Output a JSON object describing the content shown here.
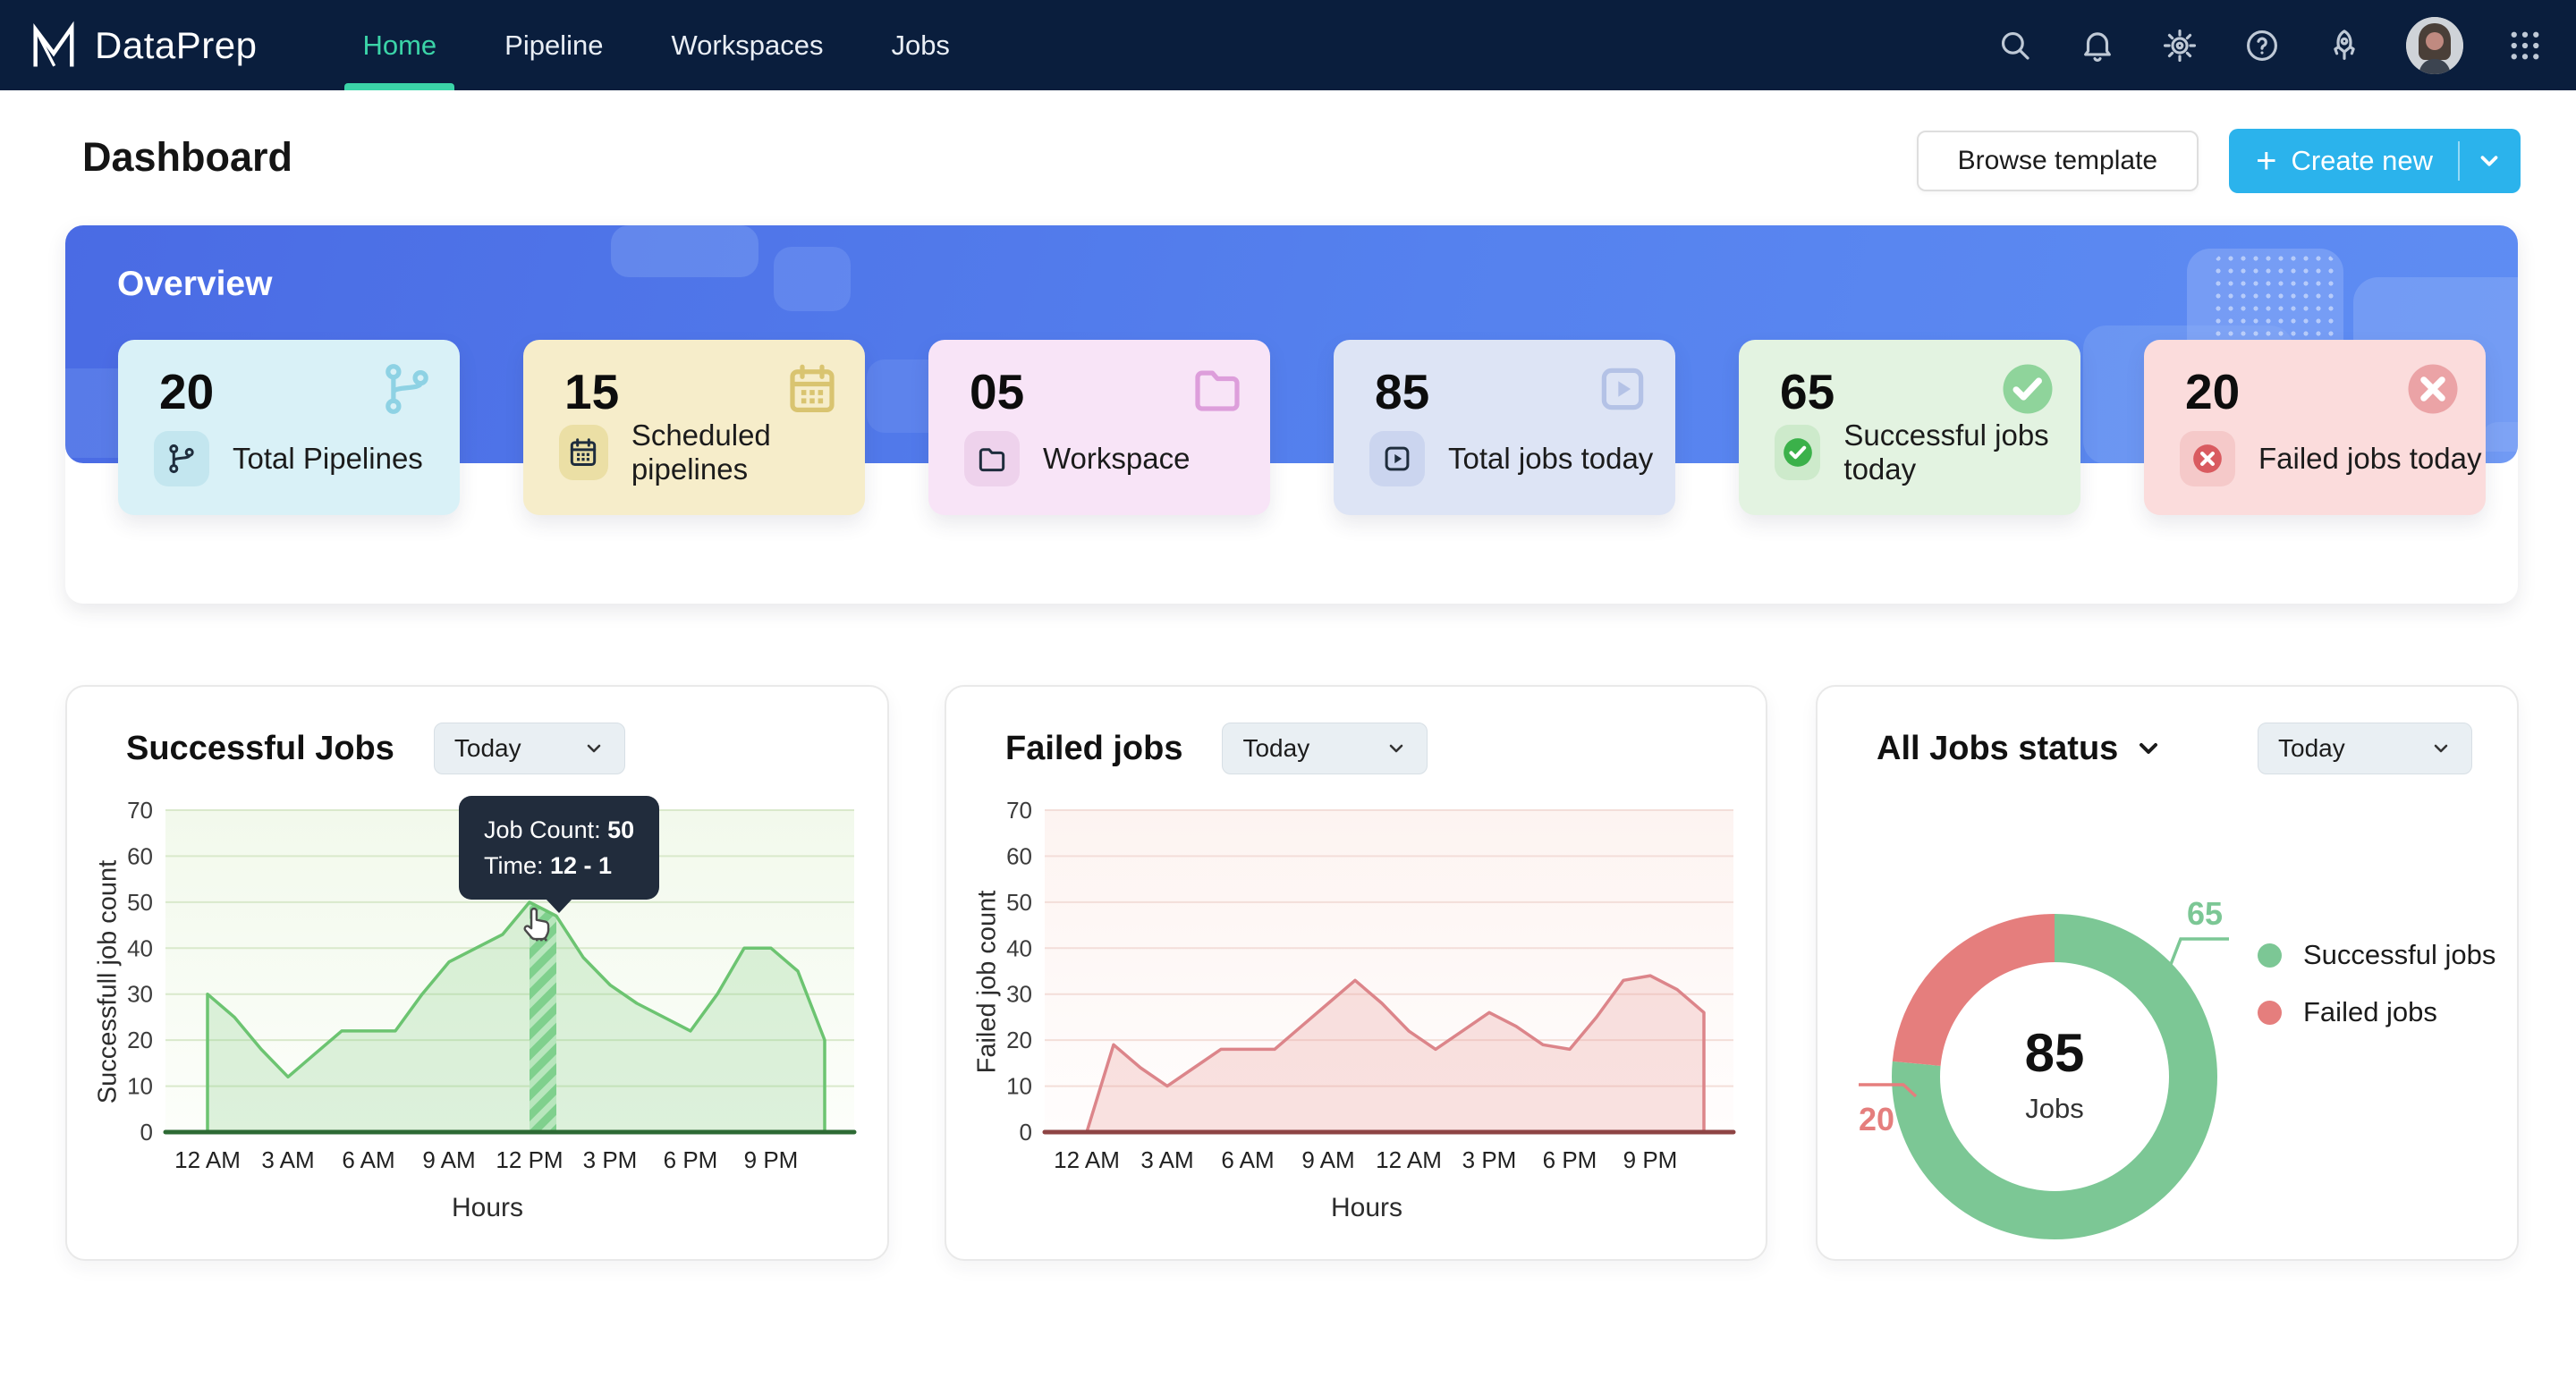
{
  "nav": {
    "brand": "DataPrep",
    "tabs": [
      {
        "label": "Home",
        "active": true
      },
      {
        "label": "Pipeline",
        "active": false
      },
      {
        "label": "Workspaces",
        "active": false
      },
      {
        "label": "Jobs",
        "active": false
      }
    ],
    "colors": {
      "bg": "#0a1e3d",
      "active_tab": "#3bd4a8"
    }
  },
  "page_header": {
    "title": "Dashboard",
    "browse_button": "Browse template",
    "create_button": "Create new",
    "create_button_color": "#2bb3ec"
  },
  "overview": {
    "title": "Overview",
    "cards": [
      {
        "value": "20",
        "label": "Total Pipelines",
        "icon": "pipeline",
        "bg": "#d9f1f7",
        "badge_bg": "#c3e6ef",
        "accent": "#8ed2e4",
        "glyph": "#1f2d3d"
      },
      {
        "value": "15",
        "label": "Scheduled pipelines",
        "icon": "calendar",
        "bg": "#f6edca",
        "badge_bg": "#ebdfa5",
        "accent": "#d9c470",
        "glyph": "#1f2d3d"
      },
      {
        "value": "05",
        "label": "Workspace",
        "icon": "folder",
        "bg": "#f8e4f7",
        "badge_bg": "#eed2ec",
        "accent": "#dd9edb",
        "glyph": "#1f2d3d"
      },
      {
        "value": "85",
        "label": "Total jobs today",
        "icon": "jobs",
        "bg": "#dde4f5",
        "badge_bg": "#cbd5ef",
        "accent": "#b4c2e6",
        "glyph": "#1f2d3d"
      },
      {
        "value": "65",
        "label": "Successful jobs today",
        "icon": "check",
        "bg": "#e3f3e1",
        "badge_bg": "#cdeacb",
        "accent": "#8fd49b",
        "glyph": "#3bb14a"
      },
      {
        "value": "20",
        "label": "Failed jobs today",
        "icon": "cross",
        "bg": "#fbdcdc",
        "badge_bg": "#f5c9c9",
        "accent": "#eba3a6",
        "glyph": "#d95b60"
      }
    ]
  },
  "chart_data": [
    {
      "type": "area",
      "title": "Successful Jobs",
      "period_selector": "Today",
      "xlabel": "Hours",
      "ylabel": "Successfull job count",
      "ylim": [
        0,
        70
      ],
      "yticks": [
        0,
        10,
        20,
        30,
        40,
        50,
        60,
        70
      ],
      "x_tick_labels": [
        "12 AM",
        "3 AM",
        "6 AM",
        "9 AM",
        "12 PM",
        "3 PM",
        "6 PM",
        "9 PM"
      ],
      "values": [
        30,
        25,
        18,
        12,
        17,
        22,
        22,
        22,
        30,
        37,
        40,
        43,
        50,
        47,
        38,
        32,
        28,
        25,
        22,
        30,
        40,
        40,
        35,
        20
      ],
      "highlight_band": {
        "from_hour": 12,
        "to_hour": 13
      },
      "tooltip": {
        "label1": "Job Count:",
        "value1": "50",
        "label2": "Time:",
        "value2": "12 - 1"
      },
      "line_color": "#6cc471",
      "fill_color": "rgba(148,213,148,0.30)",
      "grid_color": "#d9e9cb",
      "baseline_color": "#2d6a34",
      "bg_top": "#f2f9ec",
      "bg_bottom": "#fcfefa",
      "stripe_dark": "#7fd08d",
      "stripe_light": "#b8e6bd"
    },
    {
      "type": "area",
      "title": "Failed jobs",
      "period_selector": "Today",
      "xlabel": "Hours",
      "ylabel": "Failed job count",
      "ylim": [
        0,
        70
      ],
      "yticks": [
        0,
        10,
        20,
        30,
        40,
        50,
        60,
        70
      ],
      "x_tick_labels": [
        "12 AM",
        "3 AM",
        "6 AM",
        "9 AM",
        "12 AM",
        "3 PM",
        "6 PM",
        "9 PM"
      ],
      "values": [
        0,
        19,
        14,
        10,
        14,
        18,
        18,
        18,
        23,
        28,
        33,
        28,
        22,
        18,
        22,
        26,
        23,
        19,
        18,
        25,
        33,
        34,
        31,
        26
      ],
      "line_color": "#dc858a",
      "fill_color": "rgba(236,162,158,0.30)",
      "grid_color": "#f3ded9",
      "baseline_color": "#8e4444",
      "bg_top": "#fdf4f1",
      "bg_bottom": "#fffdfd"
    },
    {
      "type": "pie",
      "title": "All Jobs status",
      "period_selector": "Today",
      "labels": [
        "Successful jobs",
        "Failed jobs"
      ],
      "values": [
        65,
        20
      ],
      "colors": [
        "#7cc795",
        "#e57e7d"
      ],
      "center_value": "85",
      "center_label": "Jobs",
      "legend_position": "right"
    }
  ]
}
